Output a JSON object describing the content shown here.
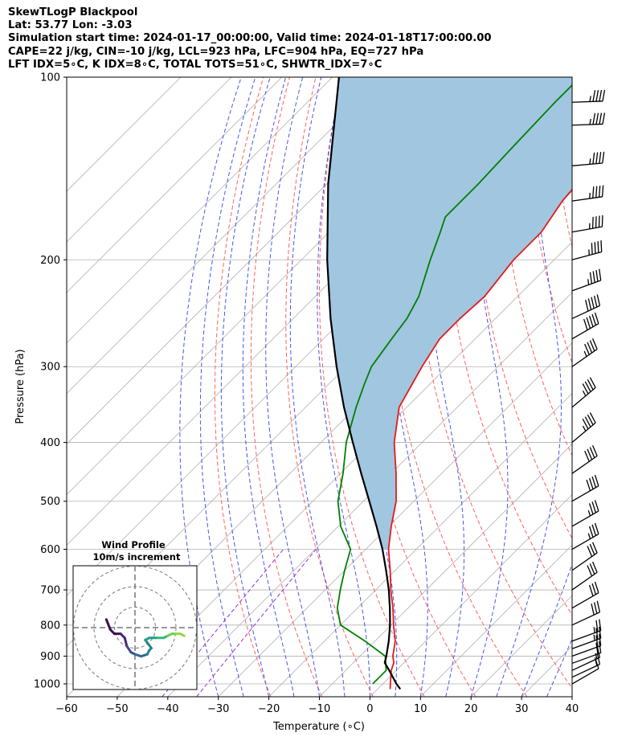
{
  "header": {
    "line1": "SkewTLogP Blackpool",
    "line2": "Lat: 53.77   Lon: -3.03",
    "line3": "Simulation start time: 2024-01-17_00:00:00, Valid time: 2024-01-18T17:00:00.00",
    "line4": "CAPE=22 j/kg, CIN=-10 j/kg, LCL=923 hPa, LFC=904 hPa, EQ=727 hPa",
    "line5": "LFT IDX=5∘C, K IDX=8∘C, TOTAL TOTS=51∘C, SHWTR_IDX=7∘C"
  },
  "inset": {
    "title": "Wind Profile",
    "subtitle": "10m/s increment",
    "ring_speeds_ms": [
      10,
      20,
      30
    ],
    "hodograph_uv": [
      [
        -14,
        4
      ],
      [
        -12,
        -1
      ],
      [
        -10,
        -3
      ],
      [
        -7,
        -3
      ],
      [
        -5,
        -5
      ],
      [
        -4,
        -9
      ],
      [
        -2,
        -12
      ],
      [
        0,
        -13
      ],
      [
        3,
        -14
      ],
      [
        6,
        -13
      ],
      [
        7,
        -11
      ],
      [
        8,
        -10
      ],
      [
        5,
        -6
      ],
      [
        7,
        -5
      ],
      [
        11,
        -5
      ],
      [
        14,
        -5
      ],
      [
        16,
        -4
      ],
      [
        18,
        -3
      ],
      [
        20,
        -3
      ],
      [
        22,
        -3
      ],
      [
        24,
        -4
      ]
    ],
    "colors": [
      "#3b0f4f",
      "#482374",
      "#3e4a89",
      "#31688e",
      "#26828e",
      "#1f9e89",
      "#35b779",
      "#6ece58",
      "#90d743"
    ]
  },
  "chart_data": {
    "type": "line",
    "title": "",
    "xlabel": "Temperature (∘C)",
    "ylabel": "Pressure (hPa)",
    "xlim": [
      -60,
      40
    ],
    "ylim": [
      1050,
      100
    ],
    "y_scale": "log",
    "skew": true,
    "x_ticks": [
      -60,
      -50,
      -40,
      -30,
      -20,
      -10,
      0,
      10,
      20,
      30,
      40
    ],
    "x_tick_labels": [
      "−60",
      "−50",
      "−40",
      "−30",
      "−20",
      "−10",
      "0",
      "10",
      "20",
      "30",
      "40"
    ],
    "y_ticks": [
      1000,
      900,
      800,
      700,
      600,
      500,
      400,
      300,
      200,
      100
    ],
    "y_tick_labels": [
      "1000",
      "900",
      "800",
      "700",
      "600",
      "500",
      "400",
      "300",
      "200",
      "100"
    ],
    "series": [
      {
        "key": "temperature",
        "color": "#e31a1c",
        "p": [
          1020,
          1000,
          950,
          923,
          900,
          850,
          800,
          750,
          700,
          650,
          600,
          550,
          500,
          450,
          400,
          350,
          300,
          270,
          250,
          230,
          200,
          180,
          160,
          150,
          130,
          110,
          100
        ],
        "t": [
          2.5,
          1.5,
          -1.0,
          -2.0,
          -3.5,
          -6.0,
          -9.5,
          -13.0,
          -17.0,
          -21.0,
          -25.5,
          -29.5,
          -33.5,
          -39.0,
          -45.5,
          -51.5,
          -55.0,
          -57.0,
          -57.0,
          -56.5,
          -58.0,
          -58.0,
          -60.0,
          -60.5,
          -64.5,
          -66.5,
          -68.0
        ]
      },
      {
        "key": "dewpoint",
        "color": "#008000",
        "p": [
          1000,
          950,
          900,
          850,
          800,
          750,
          700,
          650,
          600,
          550,
          500,
          450,
          400,
          350,
          320,
          300,
          270,
          250,
          230,
          200,
          180,
          170,
          150,
          130,
          110,
          100
        ],
        "t": [
          -2.0,
          -2.0,
          -5.0,
          -12.0,
          -20.0,
          -24.0,
          -27.0,
          -30.0,
          -33.0,
          -39.5,
          -45.0,
          -49.5,
          -55.0,
          -60.0,
          -63.0,
          -65.0,
          -66.5,
          -67.5,
          -69.5,
          -74.5,
          -78.0,
          -80.0,
          -80.0,
          -80.5,
          -81.0,
          -81.0
        ]
      },
      {
        "key": "parcel",
        "color": "#000000",
        "p": [
          1020,
          1000,
          950,
          923,
          900,
          850,
          800,
          750,
          700,
          650,
          600,
          550,
          500,
          450,
          400,
          350,
          300,
          250,
          200,
          150,
          100
        ],
        "t": [
          4.5,
          2.7,
          -1.4,
          -3.8,
          -4.8,
          -7.3,
          -10.2,
          -13.6,
          -17.4,
          -21.8,
          -26.7,
          -32.4,
          -38.8,
          -45.9,
          -53.7,
          -62.4,
          -71.9,
          -82.6,
          -94.9,
          -109.7,
          -128.7
        ]
      }
    ],
    "cape_fill_color": "#a1c6e0",
    "wind_barbs": [
      {
        "p": 1000,
        "speed_kt": 10,
        "dir_deg": 240
      },
      {
        "p": 975,
        "speed_kt": 15,
        "dir_deg": 245
      },
      {
        "p": 950,
        "speed_kt": 15,
        "dir_deg": 245
      },
      {
        "p": 925,
        "speed_kt": 20,
        "dir_deg": 250
      },
      {
        "p": 900,
        "speed_kt": 20,
        "dir_deg": 250
      },
      {
        "p": 875,
        "speed_kt": 25,
        "dir_deg": 250
      },
      {
        "p": 850,
        "speed_kt": 25,
        "dir_deg": 250
      },
      {
        "p": 800,
        "speed_kt": 30,
        "dir_deg": 245
      },
      {
        "p": 750,
        "speed_kt": 30,
        "dir_deg": 240
      },
      {
        "p": 700,
        "speed_kt": 30,
        "dir_deg": 235
      },
      {
        "p": 650,
        "speed_kt": 30,
        "dir_deg": 235
      },
      {
        "p": 600,
        "speed_kt": 35,
        "dir_deg": 240
      },
      {
        "p": 550,
        "speed_kt": 35,
        "dir_deg": 240
      },
      {
        "p": 500,
        "speed_kt": 40,
        "dir_deg": 240
      },
      {
        "p": 450,
        "speed_kt": 40,
        "dir_deg": 235
      },
      {
        "p": 400,
        "speed_kt": 45,
        "dir_deg": 230
      },
      {
        "p": 350,
        "speed_kt": 45,
        "dir_deg": 230
      },
      {
        "p": 300,
        "speed_kt": 45,
        "dir_deg": 235
      },
      {
        "p": 270,
        "speed_kt": 50,
        "dir_deg": 240
      },
      {
        "p": 250,
        "speed_kt": 50,
        "dir_deg": 245
      },
      {
        "p": 225,
        "speed_kt": 45,
        "dir_deg": 250
      },
      {
        "p": 200,
        "speed_kt": 45,
        "dir_deg": 255
      },
      {
        "p": 180,
        "speed_kt": 45,
        "dir_deg": 260
      },
      {
        "p": 160,
        "speed_kt": 45,
        "dir_deg": 262
      },
      {
        "p": 140,
        "speed_kt": 45,
        "dir_deg": 265
      },
      {
        "p": 120,
        "speed_kt": 45,
        "dir_deg": 268
      },
      {
        "p": 110,
        "speed_kt": 45,
        "dir_deg": 268
      }
    ],
    "isotherm_color": "#b0b0b0",
    "dry_adiabat_color": "#ff6060",
    "moist_adiabat_color": "#4a55e6",
    "mixing_ratio_color": "#9b30d0",
    "grid": true
  }
}
